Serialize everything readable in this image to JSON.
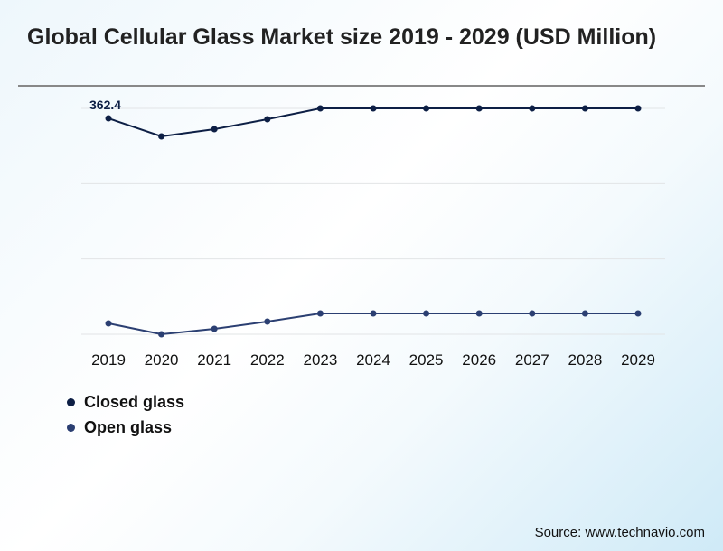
{
  "chart_data": {
    "type": "line",
    "title": "Global Cellular Glass Market size 2019 - 2029 (USD Million)",
    "x": [
      "2019",
      "2020",
      "2021",
      "2022",
      "2023",
      "2024",
      "2025",
      "2026",
      "2027",
      "2028",
      "2029"
    ],
    "series": [
      {
        "name": "Closed glass",
        "color": "#0d1f45",
        "values": [
          362.4,
          332.1,
          344.2,
          360.9,
          379.1,
          379.1,
          379.1,
          379.1,
          379.1,
          379.1,
          379.1
        ]
      },
      {
        "name": "Open glass",
        "color": "#2b3f72",
        "values": [
          18.2,
          0,
          9.1,
          21.2,
          34.9,
          34.9,
          34.9,
          34.9,
          34.9,
          34.9,
          34.9
        ]
      }
    ],
    "data_labels": [
      {
        "series": "Closed glass",
        "x": "2019",
        "text": "362.4"
      }
    ],
    "ylim": [
      0,
      379.1
    ],
    "grid": true,
    "legend": "bottom-left",
    "xlabel": "",
    "ylabel": ""
  },
  "source": "Source: www.technavio.com"
}
